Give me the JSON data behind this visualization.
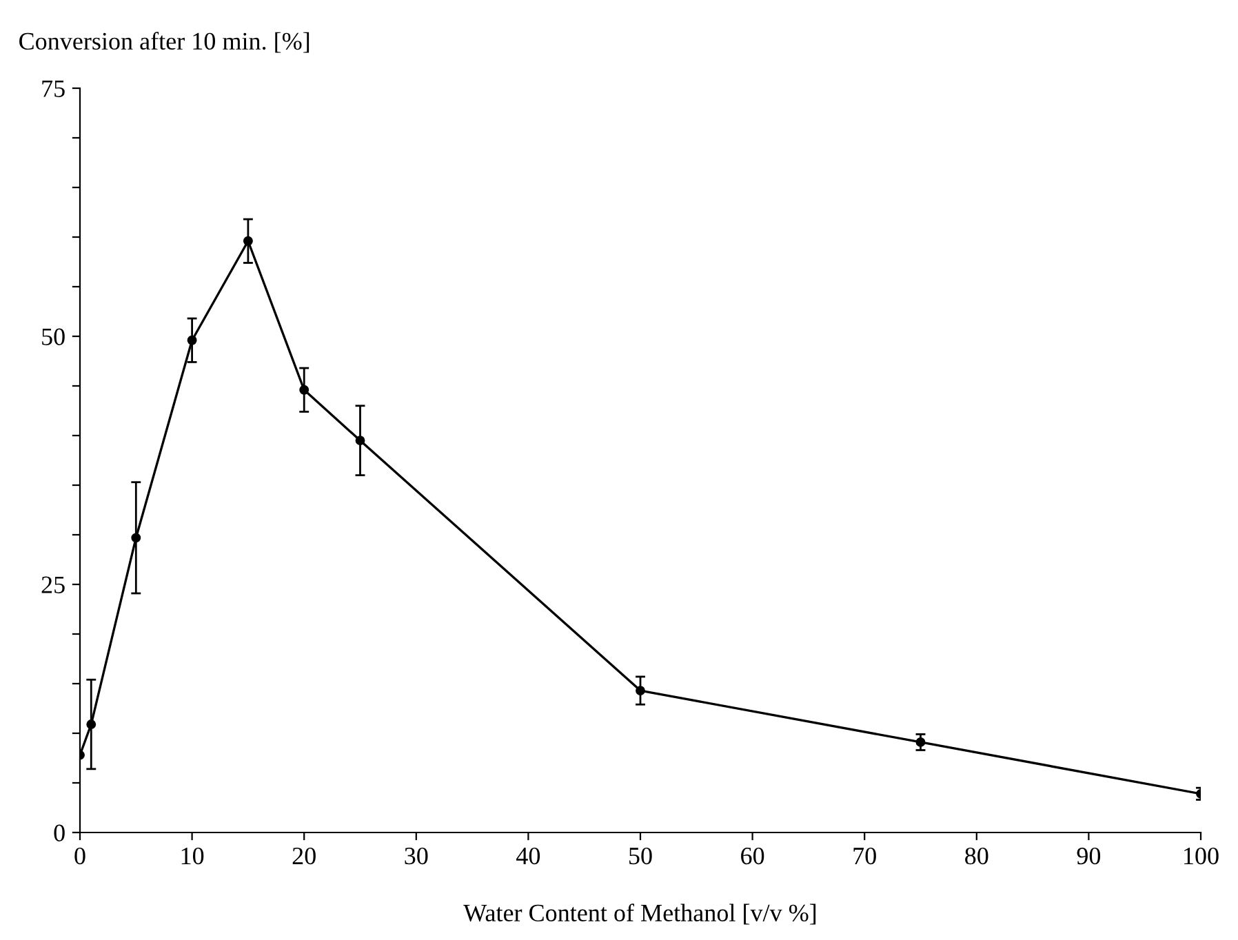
{
  "chart_data": {
    "type": "line",
    "xlabel": "Water Content of Methanol [v/v %]",
    "ylabel": "Conversion after 10 min. [%]",
    "x": [
      0,
      1,
      5,
      10,
      15,
      20,
      25,
      50,
      75,
      100
    ],
    "series": [
      {
        "color": "#000000",
        "values": [
          7.8,
          10.9,
          29.7,
          49.6,
          59.6,
          44.6,
          39.5,
          14.3,
          9.1,
          3.9
        ],
        "errors": [
          null,
          4.5,
          5.6,
          2.2,
          2.2,
          2.2,
          3.5,
          1.4,
          0.8,
          0.6
        ]
      }
    ],
    "xlim": [
      0,
      100
    ],
    "xticks": [
      0,
      10,
      20,
      30,
      40,
      50,
      60,
      70,
      80,
      90,
      100
    ],
    "ylim": [
      0,
      75
    ],
    "yticks": [
      0,
      {
        "value": 5,
        "label": null
      },
      {
        "value": 10,
        "label": null
      },
      {
        "value": 15,
        "label": null
      },
      {
        "value": 20,
        "label": null
      },
      25,
      {
        "value": 30,
        "label": null
      },
      {
        "value": 35,
        "label": null
      },
      {
        "value": 40,
        "label": null
      },
      {
        "value": 45,
        "label": null
      },
      50,
      {
        "value": 55,
        "label": null
      },
      {
        "value": 60,
        "label": null
      },
      {
        "value": 65,
        "label": null
      },
      {
        "value": 70,
        "label": null
      },
      75
    ],
    "grid": false,
    "marker": "circle",
    "line_style": "solid"
  }
}
